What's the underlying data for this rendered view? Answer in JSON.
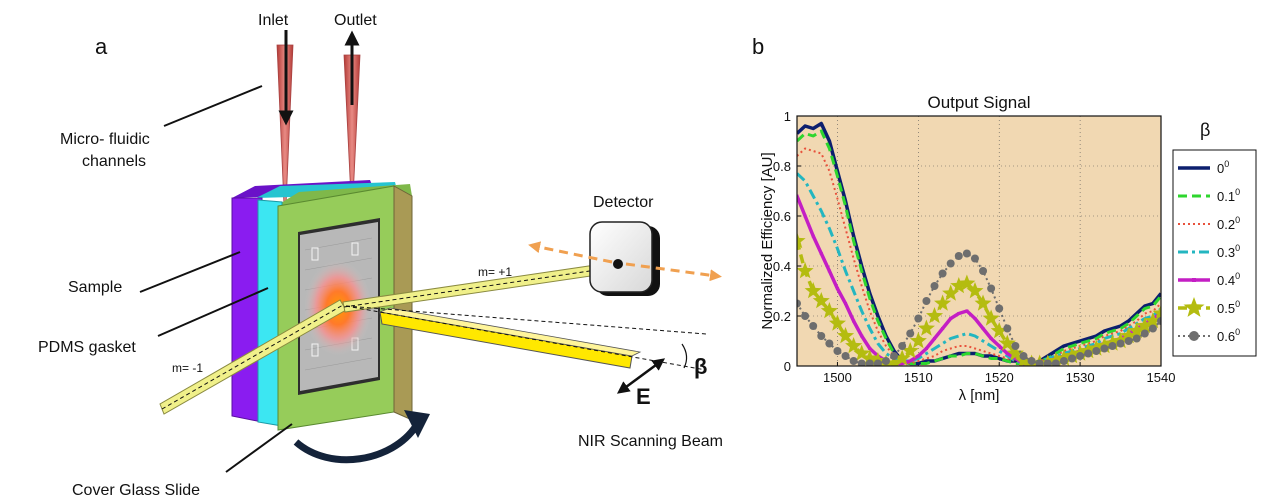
{
  "panel_a": {
    "letter": "a",
    "labels": {
      "inlet": "Inlet",
      "outlet": "Outlet",
      "microfluidic_line1": "Micro- fluidic",
      "microfluidic_line2": "channels",
      "sample": "Sample",
      "pdms": "PDMS gasket",
      "cover_glass": "Cover Glass Slide",
      "detector": "Detector",
      "m_plus": "m= +1",
      "m_minus": "m= -1",
      "beta": "β",
      "efield": "E",
      "nir": "NIR Scanning Beam"
    },
    "colors": {
      "sample_purple": "#8a1cf0",
      "pdms_cyan": "#3ce6f2",
      "glass_green": "#96cc5a",
      "glass_dark": "#a99a55",
      "beam_yellow": "#f0f08a",
      "needle_red": "#d9534f",
      "arrow_orange": "#f0a050",
      "rotation_arrow": "#14233a"
    }
  },
  "panel_b": {
    "letter": "b",
    "legend_title": "β"
  },
  "chart_data": {
    "type": "line",
    "title": "Output Signal",
    "xlabel": "λ [nm]",
    "ylabel": "Normalized Efficiency [AU]",
    "xlim": [
      1495,
      1540
    ],
    "ylim": [
      0,
      1
    ],
    "xticks": [
      1500,
      1510,
      1520,
      1530,
      1540
    ],
    "yticks": [
      0,
      0.2,
      0.4,
      0.6,
      0.8,
      1
    ],
    "xtick_labels": [
      "1500",
      "1510",
      "1520",
      "1530",
      "1540"
    ],
    "ytick_labels": [
      "0",
      "0.2",
      "0.4",
      "0.6",
      "0.8",
      "1"
    ],
    "grid": true,
    "background": "#f1d8b2",
    "series": [
      {
        "name": "0",
        "sup": "0",
        "color": "#0c1f6e",
        "dash": "",
        "width": 3.5,
        "marker": "none",
        "x": [
          1495,
          1496,
          1497,
          1498,
          1499,
          1500,
          1501,
          1502,
          1503,
          1504,
          1505,
          1506,
          1507,
          1508,
          1509,
          1510,
          1511,
          1512,
          1513,
          1514,
          1515,
          1516,
          1517,
          1518,
          1519,
          1520,
          1521,
          1522,
          1523,
          1524,
          1525,
          1526,
          1527,
          1528,
          1529,
          1530,
          1531,
          1532,
          1533,
          1534,
          1535,
          1536,
          1537,
          1538,
          1539,
          1540
        ],
        "y": [
          0.93,
          0.96,
          0.95,
          0.97,
          0.9,
          0.78,
          0.66,
          0.52,
          0.4,
          0.29,
          0.2,
          0.12,
          0.06,
          0.02,
          0.01,
          0.01,
          0.02,
          0.02,
          0.03,
          0.04,
          0.05,
          0.05,
          0.05,
          0.04,
          0.04,
          0.03,
          0.02,
          0.02,
          0.01,
          0.01,
          0.02,
          0.04,
          0.06,
          0.08,
          0.09,
          0.1,
          0.11,
          0.12,
          0.14,
          0.15,
          0.16,
          0.18,
          0.21,
          0.24,
          0.25,
          0.29
        ]
      },
      {
        "name": "0.1",
        "sup": "0",
        "color": "#2ed62e",
        "dash": "9,5",
        "width": 3,
        "marker": "none",
        "x": [
          1495,
          1496,
          1497,
          1498,
          1499,
          1500,
          1501,
          1502,
          1503,
          1504,
          1505,
          1506,
          1507,
          1508,
          1509,
          1510,
          1511,
          1512,
          1513,
          1514,
          1515,
          1516,
          1517,
          1518,
          1519,
          1520,
          1521,
          1522,
          1523,
          1524,
          1525,
          1526,
          1527,
          1528,
          1529,
          1530,
          1531,
          1532,
          1533,
          1534,
          1535,
          1536,
          1537,
          1538,
          1539,
          1540
        ],
        "y": [
          0.9,
          0.93,
          0.92,
          0.94,
          0.87,
          0.76,
          0.64,
          0.5,
          0.38,
          0.27,
          0.18,
          0.11,
          0.05,
          0.02,
          0.01,
          0.01,
          0.01,
          0.02,
          0.03,
          0.04,
          0.04,
          0.05,
          0.05,
          0.04,
          0.03,
          0.03,
          0.02,
          0.01,
          0.01,
          0.01,
          0.02,
          0.03,
          0.05,
          0.07,
          0.08,
          0.09,
          0.1,
          0.11,
          0.13,
          0.14,
          0.15,
          0.17,
          0.2,
          0.23,
          0.24,
          0.28
        ]
      },
      {
        "name": "0.2",
        "sup": "0",
        "color": "#e8523c",
        "dash": "2,3",
        "width": 2,
        "marker": "none",
        "x": [
          1495,
          1496,
          1497,
          1498,
          1499,
          1500,
          1501,
          1502,
          1503,
          1504,
          1505,
          1506,
          1507,
          1508,
          1509,
          1510,
          1511,
          1512,
          1513,
          1514,
          1515,
          1516,
          1517,
          1518,
          1519,
          1520,
          1521,
          1522,
          1523,
          1524,
          1525,
          1526,
          1527,
          1528,
          1529,
          1530,
          1531,
          1532,
          1533,
          1534,
          1535,
          1536,
          1537,
          1538,
          1539,
          1540
        ],
        "y": [
          0.84,
          0.87,
          0.86,
          0.85,
          0.78,
          0.67,
          0.55,
          0.43,
          0.32,
          0.22,
          0.14,
          0.08,
          0.04,
          0.02,
          0.01,
          0.02,
          0.03,
          0.04,
          0.06,
          0.07,
          0.08,
          0.08,
          0.07,
          0.06,
          0.05,
          0.04,
          0.03,
          0.02,
          0.01,
          0.01,
          0.02,
          0.03,
          0.04,
          0.06,
          0.07,
          0.08,
          0.09,
          0.1,
          0.12,
          0.13,
          0.14,
          0.16,
          0.18,
          0.21,
          0.22,
          0.25
        ]
      },
      {
        "name": "0.3",
        "sup": "0",
        "color": "#23b6c0",
        "dash": "10,4,3,4",
        "width": 3,
        "marker": "none",
        "x": [
          1495,
          1496,
          1497,
          1498,
          1499,
          1500,
          1501,
          1502,
          1503,
          1504,
          1505,
          1506,
          1507,
          1508,
          1509,
          1510,
          1511,
          1512,
          1513,
          1514,
          1515,
          1516,
          1517,
          1518,
          1519,
          1520,
          1521,
          1522,
          1523,
          1524,
          1525,
          1526,
          1527,
          1528,
          1529,
          1530,
          1531,
          1532,
          1533,
          1534,
          1535,
          1536,
          1537,
          1538,
          1539,
          1540
        ],
        "y": [
          0.77,
          0.74,
          0.68,
          0.62,
          0.55,
          0.47,
          0.38,
          0.3,
          0.22,
          0.15,
          0.09,
          0.05,
          0.03,
          0.02,
          0.02,
          0.03,
          0.05,
          0.07,
          0.09,
          0.11,
          0.12,
          0.13,
          0.12,
          0.1,
          0.08,
          0.06,
          0.04,
          0.02,
          0.01,
          0.01,
          0.02,
          0.03,
          0.04,
          0.05,
          0.06,
          0.07,
          0.08,
          0.09,
          0.11,
          0.12,
          0.13,
          0.15,
          0.17,
          0.19,
          0.2,
          0.23
        ]
      },
      {
        "name": "0.4",
        "sup": "0",
        "color": "#c41ec4",
        "dash": "",
        "width": 3.5,
        "marker": "square",
        "x": [
          1495,
          1496,
          1497,
          1498,
          1499,
          1500,
          1501,
          1502,
          1503,
          1504,
          1505,
          1506,
          1507,
          1508,
          1509,
          1510,
          1511,
          1512,
          1513,
          1514,
          1515,
          1516,
          1517,
          1518,
          1519,
          1520,
          1521,
          1522,
          1523,
          1524,
          1525,
          1526,
          1527,
          1528,
          1529,
          1530,
          1531,
          1532,
          1533,
          1534,
          1535,
          1536,
          1537,
          1538,
          1539,
          1540
        ],
        "y": [
          0.68,
          0.6,
          0.52,
          0.45,
          0.38,
          0.31,
          0.25,
          0.18,
          0.12,
          0.07,
          0.04,
          0.02,
          0.01,
          0.01,
          0.02,
          0.04,
          0.07,
          0.11,
          0.15,
          0.19,
          0.21,
          0.22,
          0.19,
          0.15,
          0.11,
          0.08,
          0.05,
          0.03,
          0.01,
          0.01,
          0.01,
          0.02,
          0.03,
          0.04,
          0.05,
          0.06,
          0.07,
          0.08,
          0.09,
          0.1,
          0.11,
          0.13,
          0.15,
          0.17,
          0.19,
          0.21
        ]
      },
      {
        "name": "0.5",
        "sup": "0",
        "color": "#b4bc10",
        "dash": "9,5",
        "width": 3.5,
        "marker": "star",
        "x": [
          1495,
          1496,
          1497,
          1498,
          1499,
          1500,
          1501,
          1502,
          1503,
          1504,
          1505,
          1506,
          1507,
          1508,
          1509,
          1510,
          1511,
          1512,
          1513,
          1514,
          1515,
          1516,
          1517,
          1518,
          1519,
          1520,
          1521,
          1522,
          1523,
          1524,
          1525,
          1526,
          1527,
          1528,
          1529,
          1530,
          1531,
          1532,
          1533,
          1534,
          1535,
          1536,
          1537,
          1538,
          1539,
          1540
        ],
        "y": [
          0.5,
          0.38,
          0.3,
          0.26,
          0.22,
          0.17,
          0.12,
          0.08,
          0.05,
          0.03,
          0.02,
          0.01,
          0.01,
          0.03,
          0.06,
          0.1,
          0.15,
          0.2,
          0.25,
          0.29,
          0.32,
          0.33,
          0.3,
          0.25,
          0.19,
          0.14,
          0.09,
          0.05,
          0.02,
          0.01,
          0.01,
          0.01,
          0.02,
          0.03,
          0.04,
          0.05,
          0.06,
          0.07,
          0.08,
          0.09,
          0.1,
          0.12,
          0.14,
          0.16,
          0.18,
          0.21
        ]
      },
      {
        "name": "0.6",
        "sup": "0",
        "color": "#6e6e6e",
        "dash": "2,3",
        "width": 2,
        "marker": "circle",
        "x": [
          1495,
          1496,
          1497,
          1498,
          1499,
          1500,
          1501,
          1502,
          1503,
          1504,
          1505,
          1506,
          1507,
          1508,
          1509,
          1510,
          1511,
          1512,
          1513,
          1514,
          1515,
          1516,
          1517,
          1518,
          1519,
          1520,
          1521,
          1522,
          1523,
          1524,
          1525,
          1526,
          1527,
          1528,
          1529,
          1530,
          1531,
          1532,
          1533,
          1534,
          1535,
          1536,
          1537,
          1538,
          1539,
          1540
        ],
        "y": [
          0.25,
          0.2,
          0.16,
          0.12,
          0.09,
          0.06,
          0.04,
          0.02,
          0.01,
          0.01,
          0.01,
          0.02,
          0.04,
          0.08,
          0.13,
          0.19,
          0.26,
          0.32,
          0.37,
          0.41,
          0.44,
          0.45,
          0.43,
          0.38,
          0.31,
          0.23,
          0.15,
          0.08,
          0.04,
          0.02,
          0.01,
          0.01,
          0.01,
          0.02,
          0.03,
          0.04,
          0.05,
          0.06,
          0.07,
          0.08,
          0.09,
          0.1,
          0.11,
          0.13,
          0.15,
          0.18
        ]
      }
    ]
  }
}
